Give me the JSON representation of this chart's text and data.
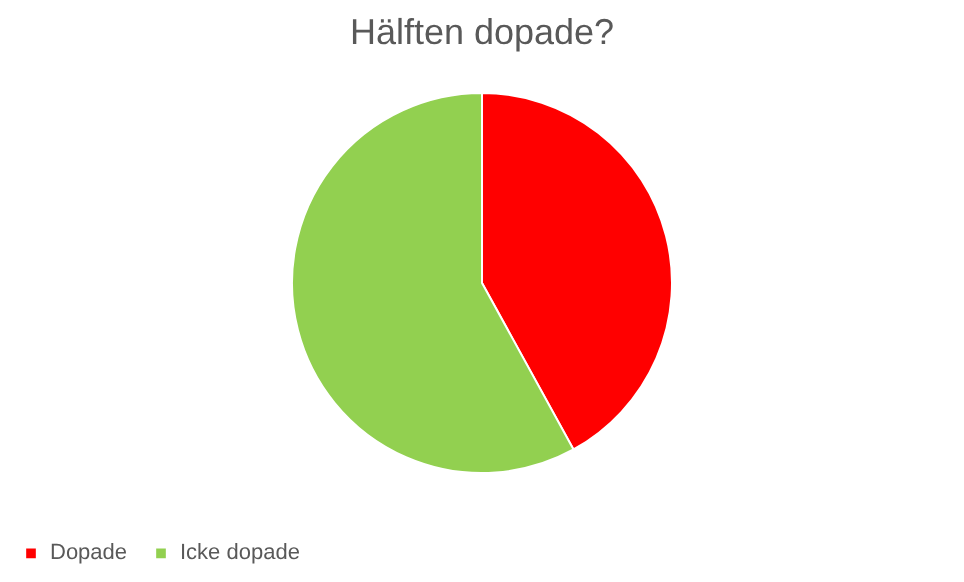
{
  "chart_data": {
    "type": "pie",
    "title": "Hälften dopade?",
    "categories": [
      "Dopade",
      "Icke dopade"
    ],
    "values": [
      42,
      58
    ],
    "colors": [
      "#ff0000",
      "#92d050"
    ],
    "legend": "bottom"
  }
}
